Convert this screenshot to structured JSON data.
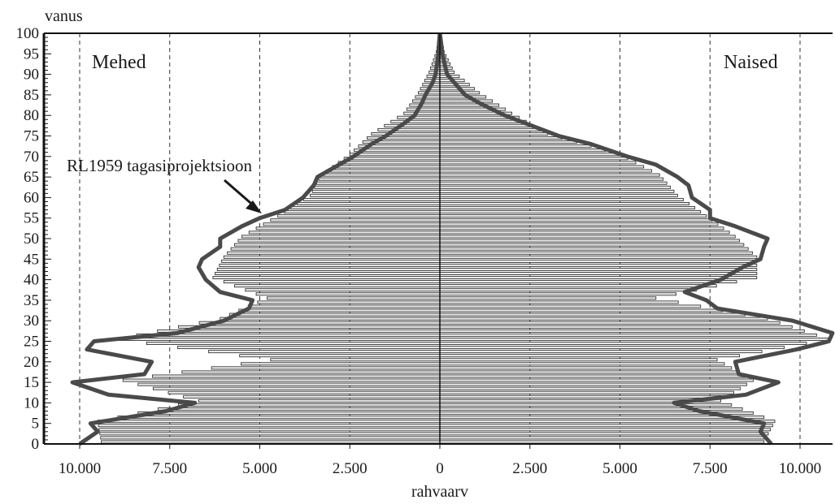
{
  "chart_data": {
    "type": "population-pyramid",
    "ylabel": "vanus",
    "xlabel": "rahvaarv",
    "left_label": "Mehed",
    "right_label": "Naised",
    "annotation": "RL1959 tagasiprojektsioon",
    "xlim": [
      -11000,
      11000
    ],
    "ylim": [
      0,
      100
    ],
    "x_ticks": [
      -10000,
      -7500,
      -5000,
      -2500,
      0,
      2500,
      5000,
      7500,
      10000
    ],
    "x_tick_labels": [
      "10.000",
      "7.500",
      "5.000",
      "2.500",
      "0",
      "2.500",
      "5.000",
      "7.500",
      "10.000"
    ],
    "y_ticks": [
      0,
      5,
      10,
      15,
      20,
      25,
      30,
      35,
      40,
      45,
      50,
      55,
      60,
      65,
      70,
      75,
      80,
      85,
      90,
      95,
      100
    ],
    "y_tick_labels": [
      "0",
      "5",
      "10",
      "15",
      "20",
      "25",
      "30",
      "35",
      "40",
      "45",
      "50",
      "55",
      "60",
      "65",
      "70",
      "75",
      "80",
      "85",
      "90",
      "95",
      "100"
    ],
    "grid_lines": [
      -10000,
      -7500,
      -5000,
      -2500,
      2500,
      5000,
      7500,
      10000
    ],
    "bar_series": {
      "ages": [
        0,
        5,
        10,
        15,
        20,
        25,
        30,
        35,
        40,
        45,
        50,
        55,
        60,
        65,
        70,
        75,
        80,
        85,
        90,
        95,
        99
      ],
      "male": [
        9400,
        9500,
        6700,
        8800,
        4700,
        9000,
        6100,
        4800,
        6300,
        6000,
        5500,
        4500,
        3600,
        3300,
        2500,
        1900,
        1000,
        600,
        300,
        100,
        30
      ],
      "female": [
        9000,
        9300,
        7800,
        8700,
        7700,
        10800,
        9100,
        6000,
        8800,
        8800,
        8200,
        7400,
        6600,
        6100,
        5000,
        3000,
        2000,
        1100,
        400,
        120,
        40
      ]
    },
    "line_series": {
      "name": "RL1959 tagasiprojektsioon",
      "ages": [
        0,
        3,
        5,
        8,
        10,
        12,
        15,
        17,
        20,
        23,
        25,
        27,
        30,
        33,
        35,
        37,
        40,
        43,
        45,
        48,
        50,
        53,
        55,
        57,
        60,
        63,
        65,
        68,
        70,
        73,
        75,
        78,
        80,
        83,
        85,
        88,
        90,
        93,
        95,
        98,
        100
      ],
      "male": [
        10000,
        9500,
        9700,
        7600,
        6800,
        9200,
        10200,
        8200,
        8000,
        9800,
        9600,
        7300,
        6000,
        5300,
        5200,
        6100,
        6500,
        6700,
        6600,
        6100,
        6100,
        5500,
        5000,
        4300,
        3800,
        3500,
        3400,
        2800,
        2400,
        1900,
        1500,
        1000,
        700,
        500,
        400,
        200,
        120,
        70,
        40,
        20,
        0
      ],
      "female": [
        9200,
        8900,
        9000,
        7200,
        6500,
        8500,
        9400,
        8300,
        8200,
        9900,
        10800,
        10900,
        9800,
        7700,
        7400,
        6800,
        7800,
        8400,
        8900,
        9000,
        9100,
        8200,
        7500,
        7500,
        7000,
        6900,
        6600,
        6000,
        5200,
        4200,
        3300,
        2400,
        1800,
        1100,
        700,
        400,
        200,
        120,
        70,
        30,
        0
      ]
    }
  }
}
